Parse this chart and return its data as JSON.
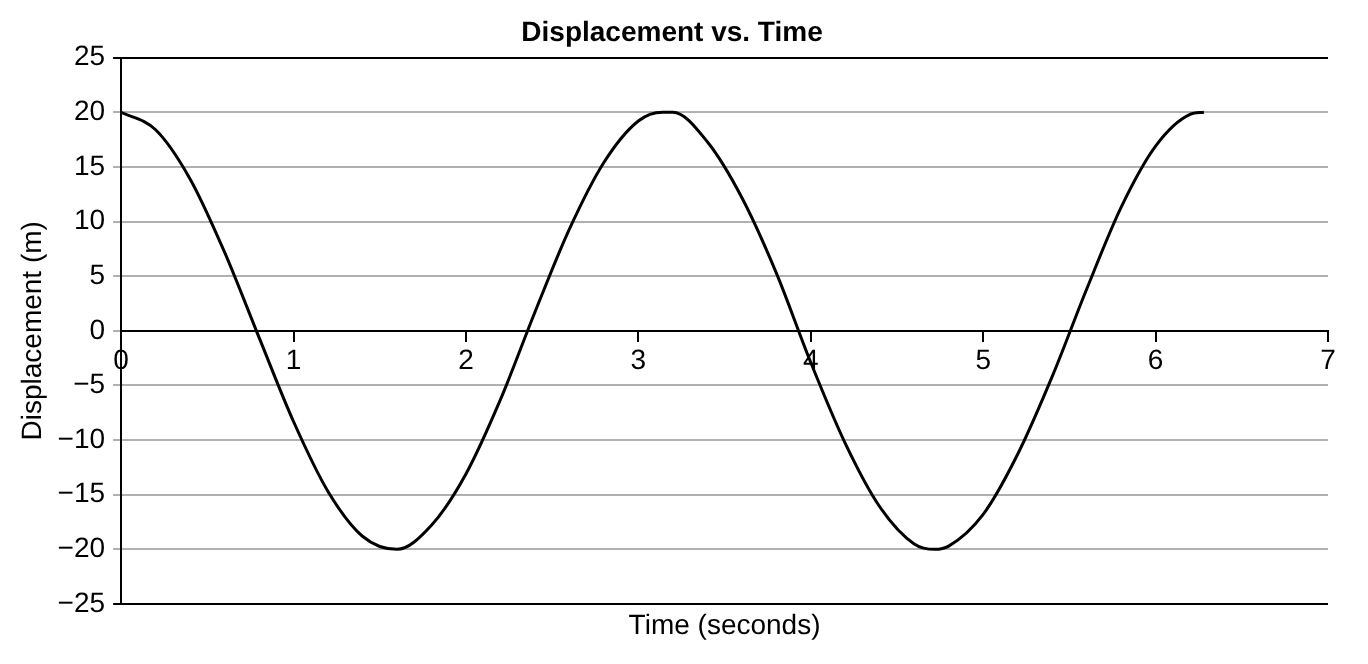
{
  "chart_data": {
    "type": "line",
    "title": "Displacement vs. Time",
    "xlabel": "Time (seconds)",
    "ylabel": "Displacement (m)",
    "x": [
      0,
      0.2,
      0.4,
      0.6,
      0.8,
      1.0,
      1.2,
      1.4,
      1.6,
      1.8,
      2.0,
      2.2,
      2.4,
      2.6,
      2.8,
      3.0,
      3.14,
      3.2,
      3.4,
      3.6,
      3.8,
      4.0,
      4.2,
      4.4,
      4.6,
      4.72,
      4.8,
      5.0,
      5.2,
      5.4,
      5.6,
      5.8,
      6.0,
      6.2,
      6.28
    ],
    "series": [
      {
        "color": "#000000",
        "values": [
          20,
          18.4,
          13.9,
          7.2,
          -0.6,
          -8.3,
          -14.7,
          -18.8,
          -20,
          -17.8,
          -13.1,
          -6.3,
          1.7,
          9.3,
          15.4,
          19.2,
          20,
          20,
          17.3,
          12.2,
          5.3,
          -2.9,
          -10.3,
          -16.1,
          -19.5,
          -20,
          -19.7,
          -16.8,
          -11.3,
          -4.2,
          3.8,
          11.3,
          16.9,
          19.8,
          20
        ]
      }
    ],
    "xlim": [
      0,
      7
    ],
    "xticks": [
      0,
      1,
      2,
      3,
      4,
      5,
      6,
      7
    ],
    "ylim": [
      -25,
      25
    ],
    "yticks": [
      -25,
      -20,
      -15,
      -10,
      -5,
      0,
      5,
      10,
      15,
      20,
      25
    ],
    "grid": "y",
    "legend": false,
    "marker": "none",
    "line_style": "solid"
  }
}
